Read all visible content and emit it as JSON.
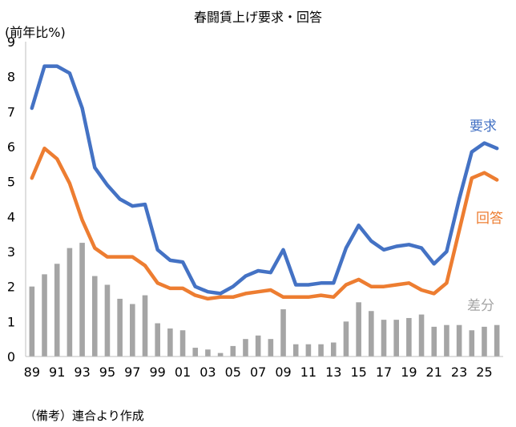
{
  "chart_data": {
    "type": "line",
    "title": "春闘賃上げ要求・回答",
    "ylabel": "(前年比%)",
    "xlabel": "",
    "note": "（備考）連合より作成",
    "ylim": [
      0,
      9
    ],
    "yticks": [
      "0",
      "1",
      "2",
      "3",
      "4",
      "5",
      "6",
      "7",
      "8",
      "9"
    ],
    "grid": false,
    "legend": "inline-right",
    "x": [
      1989,
      1990,
      1991,
      1992,
      1993,
      1994,
      1995,
      1996,
      1997,
      1998,
      1999,
      2000,
      2001,
      2002,
      2003,
      2004,
      2005,
      2006,
      2007,
      2008,
      2009,
      2010,
      2011,
      2012,
      2013,
      2014,
      2015,
      2016,
      2017,
      2018,
      2019,
      2020,
      2021,
      2022,
      2023,
      2024,
      2025,
      2026
    ],
    "xtick_labels": [
      "89",
      "91",
      "93",
      "95",
      "97",
      "99",
      "01",
      "03",
      "05",
      "07",
      "09",
      "11",
      "13",
      "15",
      "17",
      "19",
      "21",
      "23",
      "25"
    ],
    "series": [
      {
        "name": "要求",
        "type": "line",
        "color": "#4472C4",
        "values": [
          7.1,
          8.3,
          8.3,
          8.1,
          7.1,
          5.4,
          4.9,
          4.5,
          4.3,
          4.35,
          3.05,
          2.75,
          2.7,
          2.0,
          1.85,
          1.8,
          2.0,
          2.3,
          2.45,
          2.4,
          3.05,
          2.05,
          2.05,
          2.1,
          2.1,
          3.1,
          3.75,
          3.3,
          3.05,
          3.15,
          3.2,
          3.1,
          2.65,
          3.0,
          4.5,
          5.85,
          6.1,
          5.95
        ]
      },
      {
        "name": "回答",
        "type": "line",
        "color": "#ED7D31",
        "values": [
          5.1,
          5.95,
          5.65,
          4.95,
          3.9,
          3.1,
          2.85,
          2.85,
          2.85,
          2.6,
          2.1,
          1.95,
          1.95,
          1.75,
          1.65,
          1.7,
          1.7,
          1.8,
          1.85,
          1.9,
          1.7,
          1.7,
          1.7,
          1.75,
          1.7,
          2.05,
          2.2,
          2.0,
          2.0,
          2.05,
          2.1,
          1.9,
          1.8,
          2.1,
          3.6,
          5.1,
          5.25,
          5.05
        ]
      },
      {
        "name": "差分",
        "type": "bar",
        "color": "#A5A5A5",
        "values": [
          2.0,
          2.35,
          2.65,
          3.1,
          3.25,
          2.3,
          2.05,
          1.65,
          1.5,
          1.75,
          0.95,
          0.8,
          0.75,
          0.25,
          0.2,
          0.1,
          0.3,
          0.5,
          0.6,
          0.5,
          1.35,
          0.35,
          0.35,
          0.35,
          0.4,
          1.0,
          1.55,
          1.3,
          1.05,
          1.05,
          1.1,
          1.2,
          0.85,
          0.9,
          0.9,
          0.75,
          0.85,
          0.9
        ]
      }
    ]
  }
}
